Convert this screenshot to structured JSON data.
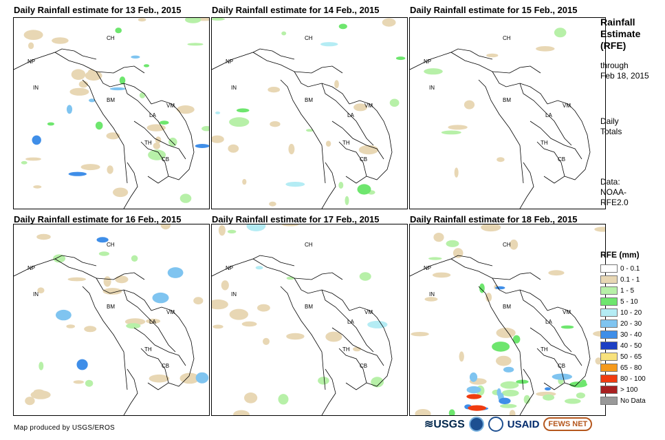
{
  "panels": [
    {
      "title": "Daily Rainfall estimate for 13 Feb., 2015"
    },
    {
      "title": "Daily Rainfall estimate for 14 Feb., 2015"
    },
    {
      "title": "Daily Rainfall estimate for 15 Feb., 2015"
    },
    {
      "title": "Daily Rainfall estimate for 16 Feb., 2015"
    },
    {
      "title": "Daily Rainfall estimate for 17 Feb., 2015"
    },
    {
      "title": "Daily Rainfall estimate for 18 Feb., 2015"
    }
  ],
  "country_labels": [
    "CH",
    "NP",
    "IN",
    "BM",
    "LA",
    "VM",
    "TH",
    "CB"
  ],
  "side": {
    "title_line1": "Rainfall",
    "title_line2": "Estimate",
    "title_line3": "(RFE)",
    "through": "through",
    "through_date": "Feb 18, 2015",
    "daily": "Daily",
    "totals": "Totals",
    "data_label": "Data:",
    "data_src1": "NOAA-",
    "data_src2": "RFE2.0"
  },
  "legend": {
    "title": "RFE (mm)",
    "items": [
      {
        "label": "0 - 0.1",
        "color": "#ffffff"
      },
      {
        "label": "0.1 - 1",
        "color": "#e8d7b4"
      },
      {
        "label": "1 - 5",
        "color": "#b7f0a8"
      },
      {
        "label": "5 - 10",
        "color": "#6ee66e"
      },
      {
        "label": "10 - 20",
        "color": "#b4ecf4"
      },
      {
        "label": "20 - 30",
        "color": "#7fc4f0"
      },
      {
        "label": "30 - 40",
        "color": "#3f8ee8"
      },
      {
        "label": "40 - 50",
        "color": "#1c3fc4"
      },
      {
        "label": "50 - 65",
        "color": "#f8e27c"
      },
      {
        "label": "65 - 80",
        "color": "#f59a1c"
      },
      {
        "label": "80 - 100",
        "color": "#f03c10"
      },
      {
        "label": "> 100",
        "color": "#a82020"
      },
      {
        "label": "No Data",
        "color": "#999999"
      }
    ]
  },
  "credit": "Map produced by USGS/EROS",
  "logos": {
    "usgs": "≋USGS",
    "usaid": "USAID",
    "fews": "FEWS NET"
  },
  "rain_levels": [
    [
      [
        {
          "n": 20,
          "c": "#e8d7b4"
        },
        {
          "n": 8,
          "c": "#b7f0a8"
        },
        {
          "n": 6,
          "c": "#6ee66e"
        },
        {
          "n": 4,
          "c": "#7fc4f0"
        },
        {
          "n": 3,
          "c": "#3f8ee8"
        }
      ],
      [
        {
          "n": 12,
          "c": "#e8d7b4"
        },
        {
          "n": 8,
          "c": "#b7f0a8"
        },
        {
          "n": 4,
          "c": "#6ee66e"
        },
        {
          "n": 3,
          "c": "#b4ecf4"
        }
      ],
      [
        {
          "n": 6,
          "c": "#e8d7b4"
        },
        {
          "n": 3,
          "c": "#b7f0a8"
        }
      ],
      [
        {
          "n": 18,
          "c": "#e8d7b4"
        },
        {
          "n": 6,
          "c": "#b7f0a8"
        },
        {
          "n": 4,
          "c": "#7fc4f0"
        },
        {
          "n": 2,
          "c": "#3f8ee8"
        }
      ],
      [
        {
          "n": 14,
          "c": "#e8d7b4"
        },
        {
          "n": 6,
          "c": "#b7f0a8"
        },
        {
          "n": 3,
          "c": "#b4ecf4"
        }
      ],
      [
        {
          "n": 20,
          "c": "#e8d7b4"
        },
        {
          "n": 12,
          "c": "#b7f0a8"
        },
        {
          "n": 8,
          "c": "#6ee66e"
        },
        {
          "n": 6,
          "c": "#7fc4f0"
        },
        {
          "n": 5,
          "c": "#3f8ee8"
        },
        {
          "n": 2,
          "c": "#f03c10"
        }
      ]
    ]
  ]
}
